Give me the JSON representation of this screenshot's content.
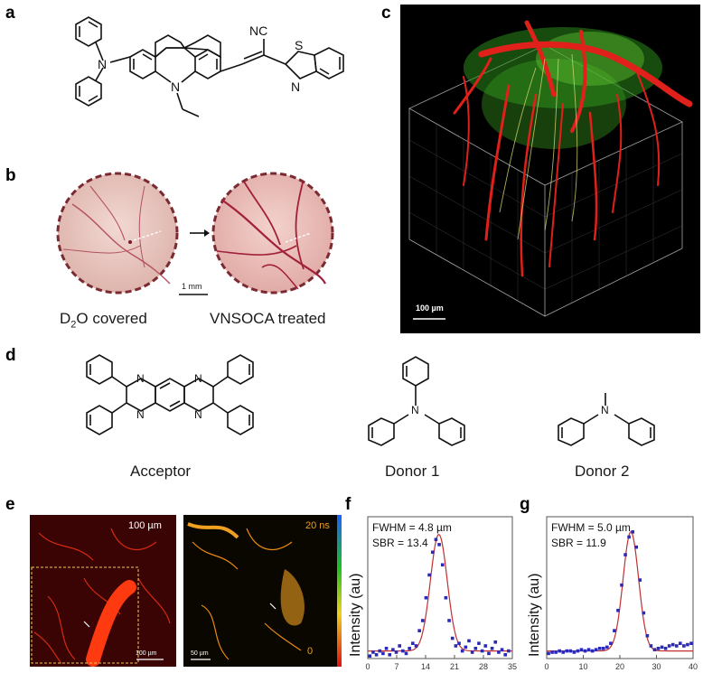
{
  "panel_labels": {
    "a": "a",
    "b": "b",
    "c": "c",
    "d": "d",
    "e": "e",
    "f": "f",
    "g": "g"
  },
  "panel_a": {
    "atoms": {
      "nitrile": "NC",
      "N_amine": "N",
      "N_carbazole": "N",
      "S": "S",
      "N_thiazole": "N"
    }
  },
  "panel_b": {
    "left_caption_pre": "D",
    "left_caption_sub": "2",
    "left_caption_post": "O covered",
    "right_caption": "VNSOCA treated",
    "scale_bar": "1 mm",
    "colors": {
      "tissue": "#e8c6c0",
      "vessel": "#a2203c",
      "ring": "#7a2a30"
    }
  },
  "panel_c": {
    "scale_bar": "100 µm",
    "colors": {
      "red_channel": "#e0201a",
      "green_channel": "#30c020"
    }
  },
  "panel_d": {
    "acceptor_label": "Acceptor",
    "donor1_label": "Donor 1",
    "donor2_label": "Donor 2",
    "atoms": {
      "N": "N"
    }
  },
  "panel_e": {
    "left_scale_text": "100 µm",
    "left_scale_bar": "100 µm",
    "right_scale_bar": "50 µm",
    "colorbar_max": "20 ns",
    "colorbar_min": "0"
  },
  "chart_data": [
    {
      "type": "scatter",
      "panel": "f",
      "annotations": [
        "FWHM = 4.8 µm",
        "SBR = 13.4"
      ],
      "xlabel": "",
      "ylabel": "Intensity (au)",
      "xlim": [
        0,
        35
      ],
      "ylim": [
        0,
        1.12
      ],
      "xticks": [
        "0",
        "7",
        "14",
        "21",
        "28",
        "35"
      ],
      "fit": {
        "center": 17.2,
        "fwhm": 4.8,
        "baseline": 0.06,
        "amplitude": 0.92
      },
      "points_x": [
        0.5,
        1.3,
        2.1,
        2.9,
        3.7,
        4.5,
        5.3,
        6.1,
        6.9,
        7.7,
        8.5,
        9.3,
        10.1,
        10.9,
        11.7,
        12.5,
        13.3,
        14.1,
        14.9,
        15.7,
        16.5,
        17.3,
        18.1,
        18.9,
        19.7,
        20.5,
        21.3,
        22.1,
        22.9,
        23.7,
        24.5,
        25.3,
        26.1,
        26.9,
        27.7,
        28.5,
        29.3,
        30.1,
        30.9,
        31.7,
        32.5,
        33.3,
        34.1
      ],
      "points_y": [
        0.02,
        0.05,
        0.03,
        0.06,
        0.04,
        0.08,
        0.03,
        0.07,
        0.05,
        0.1,
        0.06,
        0.04,
        0.08,
        0.12,
        0.1,
        0.22,
        0.3,
        0.48,
        0.66,
        0.84,
        0.94,
        0.9,
        0.74,
        0.48,
        0.3,
        0.16,
        0.1,
        0.12,
        0.06,
        0.09,
        0.14,
        0.05,
        0.08,
        0.12,
        0.06,
        0.1,
        0.04,
        0.08,
        0.13,
        0.05,
        0.07,
        0.03,
        0.06
      ],
      "colors": {
        "points": "#2a2ab8",
        "fit": "#c23030"
      }
    },
    {
      "type": "scatter",
      "panel": "g",
      "annotations": [
        "FWHM = 5.0 µm",
        "SBR = 11.9"
      ],
      "xlabel": "",
      "ylabel": "Intensity (au)",
      "xlim": [
        0,
        40
      ],
      "ylim": [
        0,
        1.12
      ],
      "xticks": [
        "0",
        "10",
        "20",
        "30",
        "40"
      ],
      "fit": {
        "center": 23.0,
        "fwhm": 5.0,
        "baseline": 0.06,
        "amplitude": 0.94
      },
      "points_x": [
        0.5,
        1.5,
        2.5,
        3.5,
        4.5,
        5.5,
        6.5,
        7.5,
        8.5,
        9.5,
        10.5,
        11.5,
        12.5,
        13.5,
        14.5,
        15.5,
        16.5,
        17.5,
        18.5,
        19.5,
        20.5,
        21.5,
        22.5,
        23.5,
        24.5,
        25.5,
        26.5,
        27.5,
        28.5,
        29.5,
        30.5,
        31.5,
        32.5,
        33.5,
        34.5,
        35.5,
        36.5,
        37.5,
        38.5,
        39.5
      ],
      "points_y": [
        0.04,
        0.05,
        0.05,
        0.06,
        0.05,
        0.06,
        0.06,
        0.05,
        0.06,
        0.07,
        0.06,
        0.07,
        0.06,
        0.07,
        0.08,
        0.08,
        0.09,
        0.12,
        0.22,
        0.38,
        0.58,
        0.82,
        0.96,
        1.0,
        0.88,
        0.62,
        0.36,
        0.18,
        0.1,
        0.07,
        0.08,
        0.09,
        0.08,
        0.1,
        0.11,
        0.1,
        0.12,
        0.1,
        0.11,
        0.12
      ],
      "colors": {
        "points": "#2a2ab8",
        "fit": "#c23030"
      }
    }
  ]
}
